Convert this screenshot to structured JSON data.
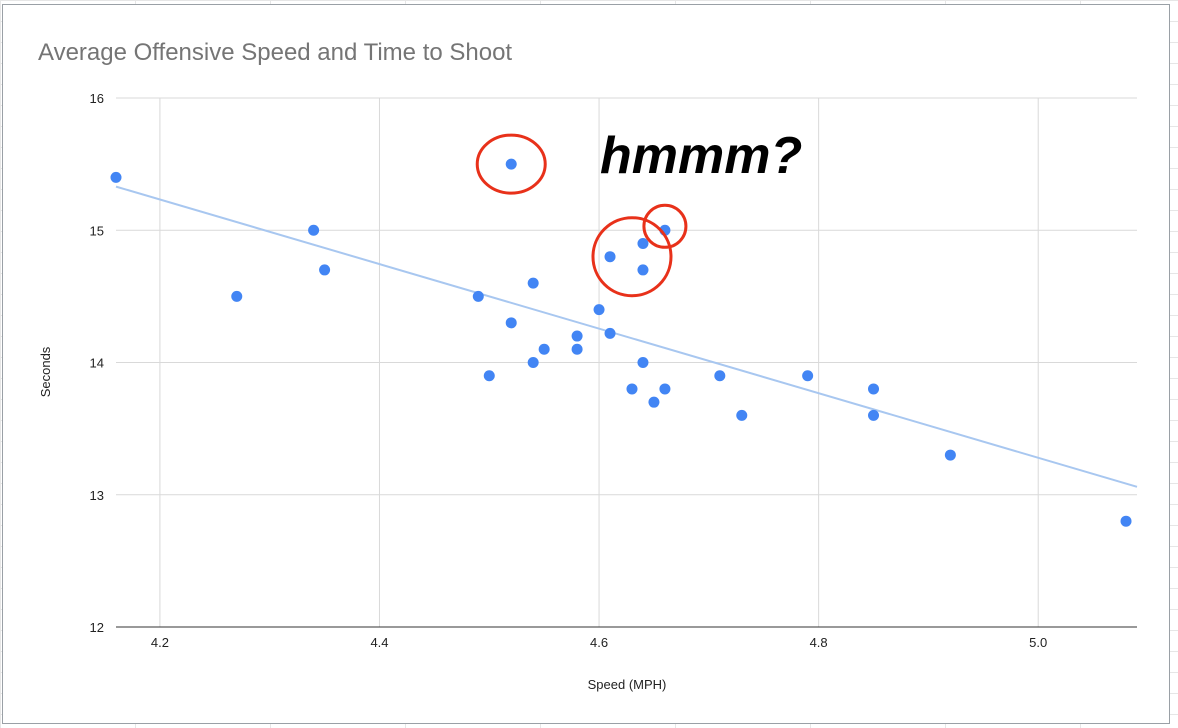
{
  "chart_data": {
    "type": "scatter",
    "title": "Average Offensive Speed and Time to Shoot",
    "xlabel": "Speed (MPH)",
    "ylabel": "Seconds",
    "xlim": [
      4.16,
      5.09
    ],
    "ylim": [
      12,
      16
    ],
    "x_ticks": [
      "4.2",
      "4.4",
      "4.6",
      "4.8",
      "5.0"
    ],
    "y_ticks": [
      "12",
      "13",
      "14",
      "15",
      "16"
    ],
    "grid": true,
    "legend": "none",
    "points": [
      {
        "x": 4.16,
        "y": 15.4
      },
      {
        "x": 4.27,
        "y": 14.5
      },
      {
        "x": 4.34,
        "y": 15.0
      },
      {
        "x": 4.35,
        "y": 14.7
      },
      {
        "x": 4.49,
        "y": 14.5
      },
      {
        "x": 4.5,
        "y": 13.9
      },
      {
        "x": 4.52,
        "y": 15.5
      },
      {
        "x": 4.52,
        "y": 14.3
      },
      {
        "x": 4.54,
        "y": 14.6
      },
      {
        "x": 4.54,
        "y": 14.0
      },
      {
        "x": 4.55,
        "y": 14.1
      },
      {
        "x": 4.58,
        "y": 14.2
      },
      {
        "x": 4.58,
        "y": 14.1
      },
      {
        "x": 4.6,
        "y": 14.4
      },
      {
        "x": 4.61,
        "y": 14.8
      },
      {
        "x": 4.61,
        "y": 14.22
      },
      {
        "x": 4.63,
        "y": 13.8
      },
      {
        "x": 4.64,
        "y": 14.9
      },
      {
        "x": 4.64,
        "y": 14.7
      },
      {
        "x": 4.64,
        "y": 14.0
      },
      {
        "x": 4.65,
        "y": 13.7
      },
      {
        "x": 4.66,
        "y": 15.0
      },
      {
        "x": 4.66,
        "y": 13.8
      },
      {
        "x": 4.71,
        "y": 13.9
      },
      {
        "x": 4.73,
        "y": 13.6
      },
      {
        "x": 4.79,
        "y": 13.9
      },
      {
        "x": 4.85,
        "y": 13.8
      },
      {
        "x": 4.85,
        "y": 13.6
      },
      {
        "x": 4.92,
        "y": 13.3
      },
      {
        "x": 5.08,
        "y": 12.8
      }
    ],
    "trendline": {
      "x": [
        4.16,
        5.09
      ],
      "y": [
        15.33,
        13.06
      ]
    },
    "annotation_text": "hmmm?",
    "highlight_circles": [
      {
        "x": 4.52,
        "y": 15.5
      },
      {
        "x": 4.63,
        "y": 14.8
      },
      {
        "x": 4.66,
        "y": 15.03
      }
    ],
    "colors": {
      "point": "#4285f4",
      "trendline": "#a8c7f0",
      "grid": "#d9d9d9",
      "circle": "#e8311a",
      "title": "#757575"
    }
  }
}
